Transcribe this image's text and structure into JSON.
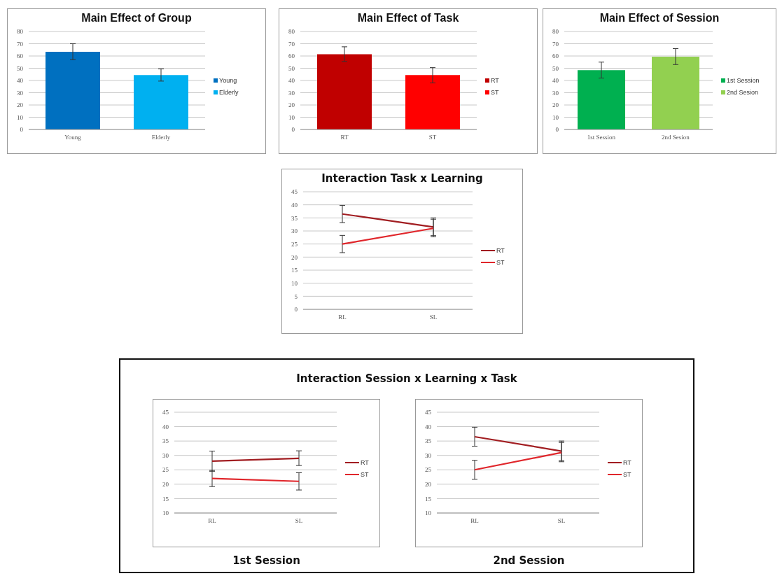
{
  "chart_data": [
    {
      "type": "bar",
      "title": "Main Effect of Group",
      "categories": [
        "Young",
        "Elderly"
      ],
      "stacked": true,
      "series": [
        {
          "name": "Young",
          "color": "#0070c0",
          "values": [
            63.5,
            null
          ],
          "errors": [
            6.5,
            null
          ]
        },
        {
          "name": "Elderly",
          "color": "#00b0f0",
          "values": [
            null,
            44.5
          ],
          "errors": [
            null,
            5
          ]
        }
      ],
      "ylim": [
        0,
        80
      ],
      "yticks": [
        0,
        10,
        20,
        30,
        40,
        50,
        60,
        70,
        80
      ],
      "grid": "y",
      "legend": "right"
    },
    {
      "type": "bar",
      "title": "Main Effect of Task",
      "categories": [
        "RT",
        "ST"
      ],
      "stacked": true,
      "series": [
        {
          "name": "RT",
          "color": "#c00000",
          "values": [
            61.5,
            null
          ],
          "errors": [
            6,
            null
          ]
        },
        {
          "name": "ST",
          "color": "#ff0000",
          "values": [
            null,
            44.5
          ],
          "errors": [
            null,
            [
              38,
              50.5
            ]
          ]
        }
      ],
      "ylim": [
        0,
        80
      ],
      "yticks": [
        0,
        10,
        20,
        30,
        40,
        50,
        60,
        70,
        80
      ],
      "grid": "y",
      "legend": "right"
    },
    {
      "type": "bar",
      "title": "Main Effect of Session",
      "categories": [
        "1st Session",
        "2nd Sesion"
      ],
      "stacked": true,
      "series": [
        {
          "name": "1st Session",
          "color": "#00b050",
          "values": [
            48.5,
            null
          ],
          "errors": [
            [
              42,
              55
            ],
            null
          ]
        },
        {
          "name": "2nd Sesion",
          "color": "#92d050",
          "values": [
            null,
            59.5
          ],
          "errors": [
            null,
            [
              53,
              66
            ]
          ]
        }
      ],
      "ylim": [
        0,
        80
      ],
      "yticks": [
        0,
        10,
        20,
        30,
        40,
        50,
        60,
        70,
        80
      ],
      "grid": "y",
      "legend": "right"
    },
    {
      "type": "line",
      "title": "Interaction Task x Learning",
      "categories": [
        "RL",
        "SL"
      ],
      "series": [
        {
          "name": "RT",
          "color": "#a11d21",
          "values": [
            36.5,
            31.5
          ],
          "errors": [
            3.3,
            [
              28.2,
              34.5
            ]
          ]
        },
        {
          "name": "ST",
          "color": "#e0262b",
          "values": [
            25,
            31
          ],
          "errors": [
            3.3,
            [
              27.8,
              35
            ]
          ]
        }
      ],
      "ylim": [
        0,
        45
      ],
      "yticks": [
        0,
        5,
        10,
        15,
        20,
        25,
        30,
        35,
        40,
        45
      ],
      "grid": "y",
      "legend": "right",
      "marker": "none",
      "line_style": "solid"
    },
    {
      "type": "other",
      "title": "Interaction Session x Learning x Task"
    },
    {
      "type": "line",
      "title": "1st Session",
      "categories": [
        "RL",
        "SL"
      ],
      "series": [
        {
          "name": "RT",
          "color": "#a11d21",
          "values": [
            28,
            29
          ],
          "errors": [
            3.5,
            [
              26.5,
              31.6
            ]
          ]
        },
        {
          "name": "ST",
          "color": "#e0262b",
          "values": [
            22,
            21
          ],
          "errors": [
            2.8,
            3
          ]
        }
      ],
      "ylim": [
        10,
        45
      ],
      "yticks": [
        10,
        15,
        20,
        25,
        30,
        35,
        40,
        45
      ],
      "grid": "y",
      "legend": "right",
      "marker": "none",
      "line_style": "solid"
    },
    {
      "type": "line",
      "title": "2nd Session",
      "categories": [
        "RL",
        "SL"
      ],
      "series": [
        {
          "name": "RT",
          "color": "#a11d21",
          "values": [
            36.5,
            31.5
          ],
          "errors": [
            3.3,
            [
              28.2,
              34.5
            ]
          ]
        },
        {
          "name": "ST",
          "color": "#e0262b",
          "values": [
            25,
            31
          ],
          "errors": [
            3.3,
            [
              27.8,
              35
            ]
          ]
        }
      ],
      "ylim": [
        10,
        45
      ],
      "yticks": [
        10,
        15,
        20,
        25,
        30,
        35,
        40,
        45
      ],
      "grid": "y",
      "legend": "right",
      "marker": "none",
      "line_style": "solid"
    }
  ]
}
